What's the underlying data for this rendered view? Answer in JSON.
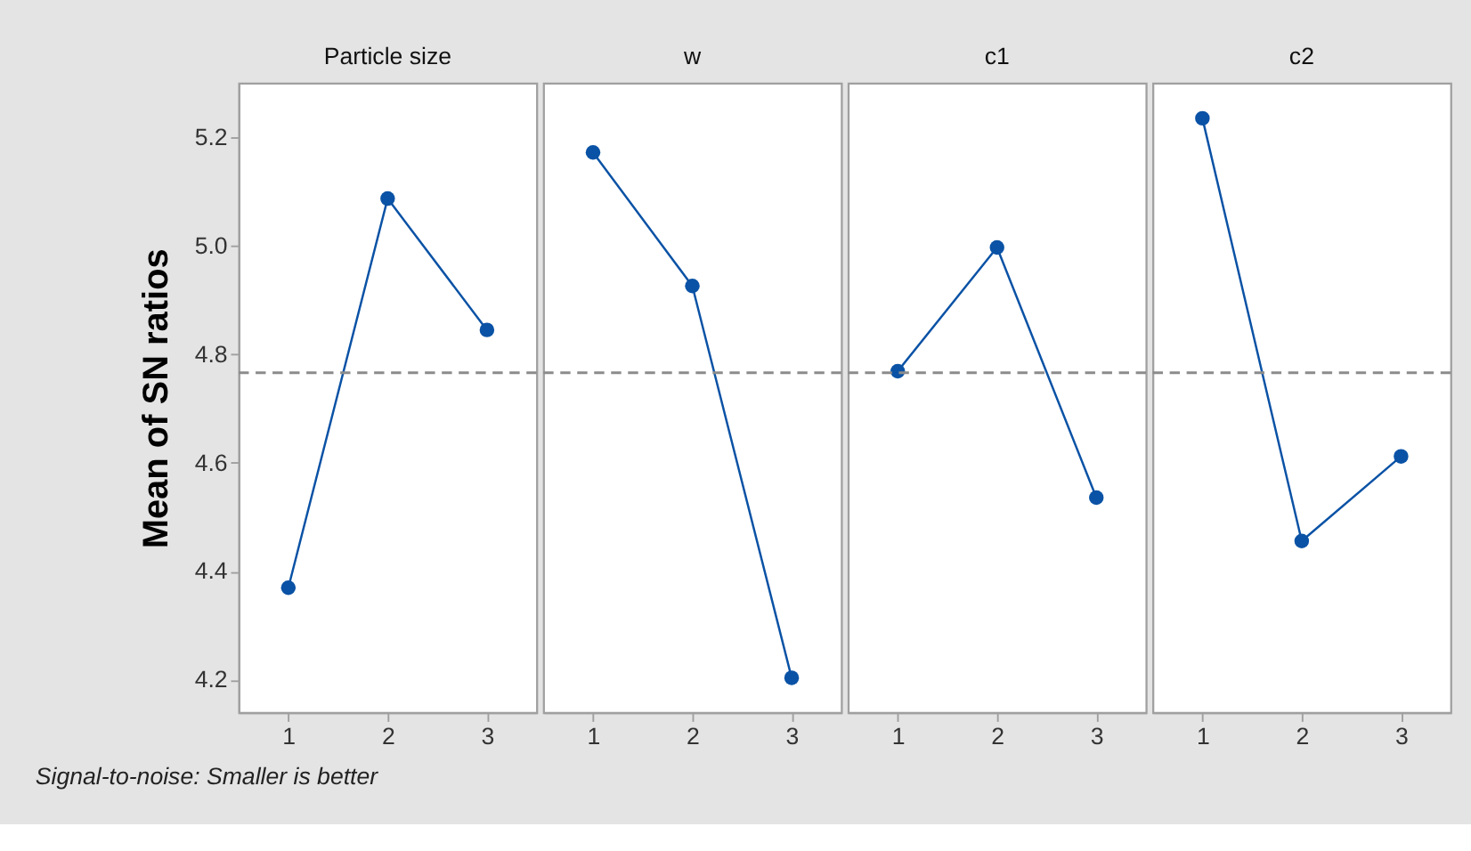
{
  "chart_data": [
    {
      "type": "line",
      "title": "Particle size",
      "ylabel": "Mean of SN ratios",
      "categories": [
        "1",
        "2",
        "3"
      ],
      "series": [
        {
          "color": "#0a52a5",
          "values": [
            4.37,
            5.087,
            4.845
          ]
        }
      ],
      "ylim": [
        4.14,
        5.3
      ],
      "yticks": [
        4.2,
        4.4,
        4.6,
        4.8,
        {
          "value": 5,
          "label": "5.0"
        },
        5.2
      ],
      "ref_lines": [
        {
          "axis": "y",
          "value": 4.766,
          "color": "#8c8c8c",
          "line_style": "dashed"
        }
      ],
      "marker": "circle",
      "line_style": "solid",
      "grid": false,
      "annotations": [
        "Signal-to-noise: Smaller is better"
      ]
    },
    {
      "type": "line",
      "title": "w",
      "categories": [
        "1",
        "2",
        "3"
      ],
      "series": [
        {
          "color": "#0a52a5",
          "values": [
            5.172,
            4.926,
            4.204
          ]
        }
      ],
      "ylim": [
        4.14,
        5.3
      ],
      "tick_labels": "x",
      "ref_lines": [
        {
          "axis": "y",
          "value": 4.766,
          "color": "#8c8c8c",
          "line_style": "dashed"
        }
      ],
      "marker": "circle",
      "line_style": "solid",
      "grid": false
    },
    {
      "type": "line",
      "title": "c1",
      "categories": [
        "1",
        "2",
        "3"
      ],
      "series": [
        {
          "color": "#0a52a5",
          "values": [
            4.769,
            4.997,
            4.536
          ]
        }
      ],
      "ylim": [
        4.14,
        5.3
      ],
      "tick_labels": "x",
      "ref_lines": [
        {
          "axis": "y",
          "value": 4.766,
          "color": "#8c8c8c",
          "line_style": "dashed"
        }
      ],
      "marker": "circle",
      "line_style": "solid",
      "grid": false
    },
    {
      "type": "line",
      "title": "c2",
      "categories": [
        "1",
        "2",
        "3"
      ],
      "series": [
        {
          "color": "#0a52a5",
          "values": [
            5.235,
            4.456,
            4.612
          ]
        }
      ],
      "ylim": [
        4.14,
        5.3
      ],
      "tick_labels": "x",
      "ref_lines": [
        {
          "axis": "y",
          "value": 4.766,
          "color": "#8c8c8c",
          "line_style": "dashed"
        }
      ],
      "marker": "circle",
      "line_style": "solid",
      "grid": false
    }
  ]
}
